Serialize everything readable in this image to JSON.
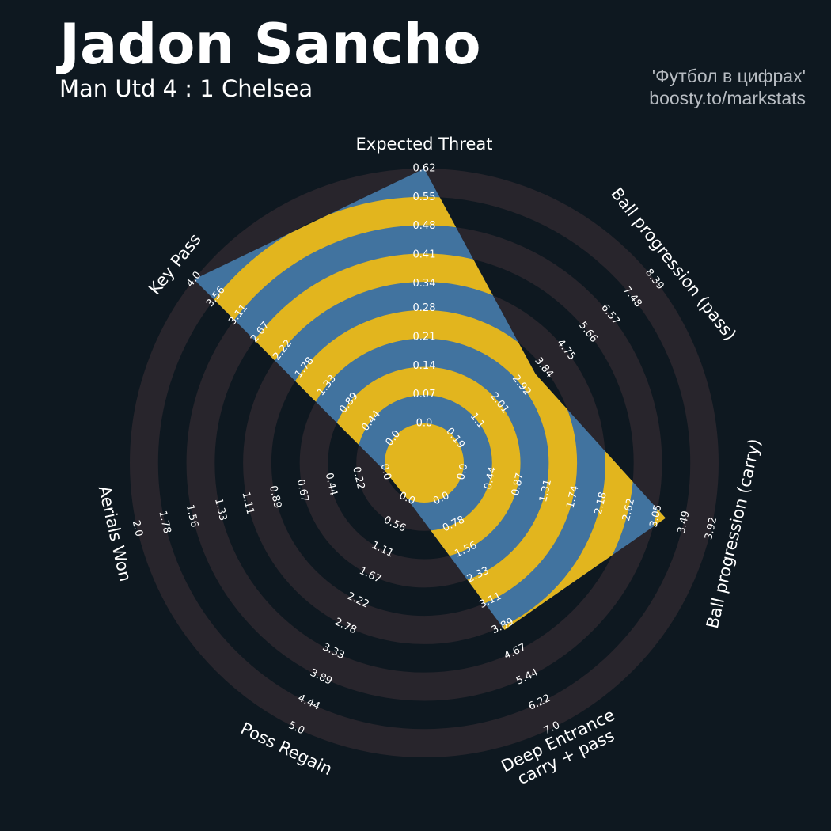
{
  "header": {
    "title": "Jadon Sancho",
    "subtitle": "Man Utd 4 : 1 Chelsea",
    "credit": [
      "'Футбол в цифрах'",
      "boosty.to/markstats"
    ]
  },
  "chart_data": {
    "type": "radar",
    "background": "#0e1820",
    "ring_color": "#28252c",
    "color": "#41739f",
    "ring_inner_color": "#e2b51e",
    "axes": [
      {
        "label": [
          "Expected Threat"
        ],
        "value": 0.62,
        "lim": [
          0,
          0.62
        ],
        "ticks": [
          {
            "value": 0,
            "label": "0.0"
          },
          0.07,
          0.14,
          0.21,
          0.28,
          0.34,
          0.41,
          0.48,
          0.55,
          0.62
        ]
      },
      {
        "label": [
          "Ball progression (pass)"
        ],
        "value": 3.5,
        "lim": [
          0.19,
          8.39
        ],
        "ticks": [
          0.19,
          1.1,
          2.01,
          2.92,
          3.84,
          4.75,
          5.66,
          6.57,
          7.48,
          8.39
        ]
      },
      {
        "label": [
          "Ball progression (carry)"
        ],
        "value": 3.2,
        "lim": [
          0,
          3.92
        ],
        "ticks": [
          {
            "value": 0,
            "label": "0.0"
          },
          0.44,
          0.87,
          1.31,
          1.74,
          2.18,
          2.62,
          3.05,
          3.49,
          3.92
        ]
      },
      {
        "label": [
          "Deep Entrance",
          "carry + pass"
        ],
        "value": 4,
        "lim": [
          0,
          7
        ],
        "ticks": [
          {
            "value": 0,
            "label": "0.0"
          },
          0.78,
          1.56,
          2.33,
          3.11,
          3.89,
          4.67,
          5.44,
          6.22,
          {
            "value": 7,
            "label": "7.0"
          }
        ]
      },
      {
        "label": [
          "Poss Regain"
        ],
        "value": 0,
        "lim": [
          0,
          5
        ],
        "ticks": [
          {
            "value": 0,
            "label": "0.0"
          },
          0.56,
          1.11,
          1.67,
          2.22,
          2.78,
          3.33,
          3.89,
          4.44,
          {
            "value": 5,
            "label": "5.0"
          }
        ]
      },
      {
        "label": [
          "Aerials Won"
        ],
        "value": 0,
        "lim": [
          0,
          2
        ],
        "ticks": [
          {
            "value": 0,
            "label": "0.0"
          },
          0.22,
          0.44,
          0.67,
          0.89,
          1.11,
          1.33,
          1.56,
          1.78,
          {
            "value": 2,
            "label": "2.0"
          }
        ]
      },
      {
        "label": [
          "Key Pass"
        ],
        "value": 4,
        "lim": [
          0,
          4
        ],
        "ticks": [
          {
            "value": 0,
            "label": "0.0"
          },
          0.44,
          0.89,
          1.33,
          1.78,
          2.22,
          2.67,
          3.11,
          3.56,
          {
            "value": 4,
            "label": "4.0"
          }
        ]
      }
    ]
  }
}
